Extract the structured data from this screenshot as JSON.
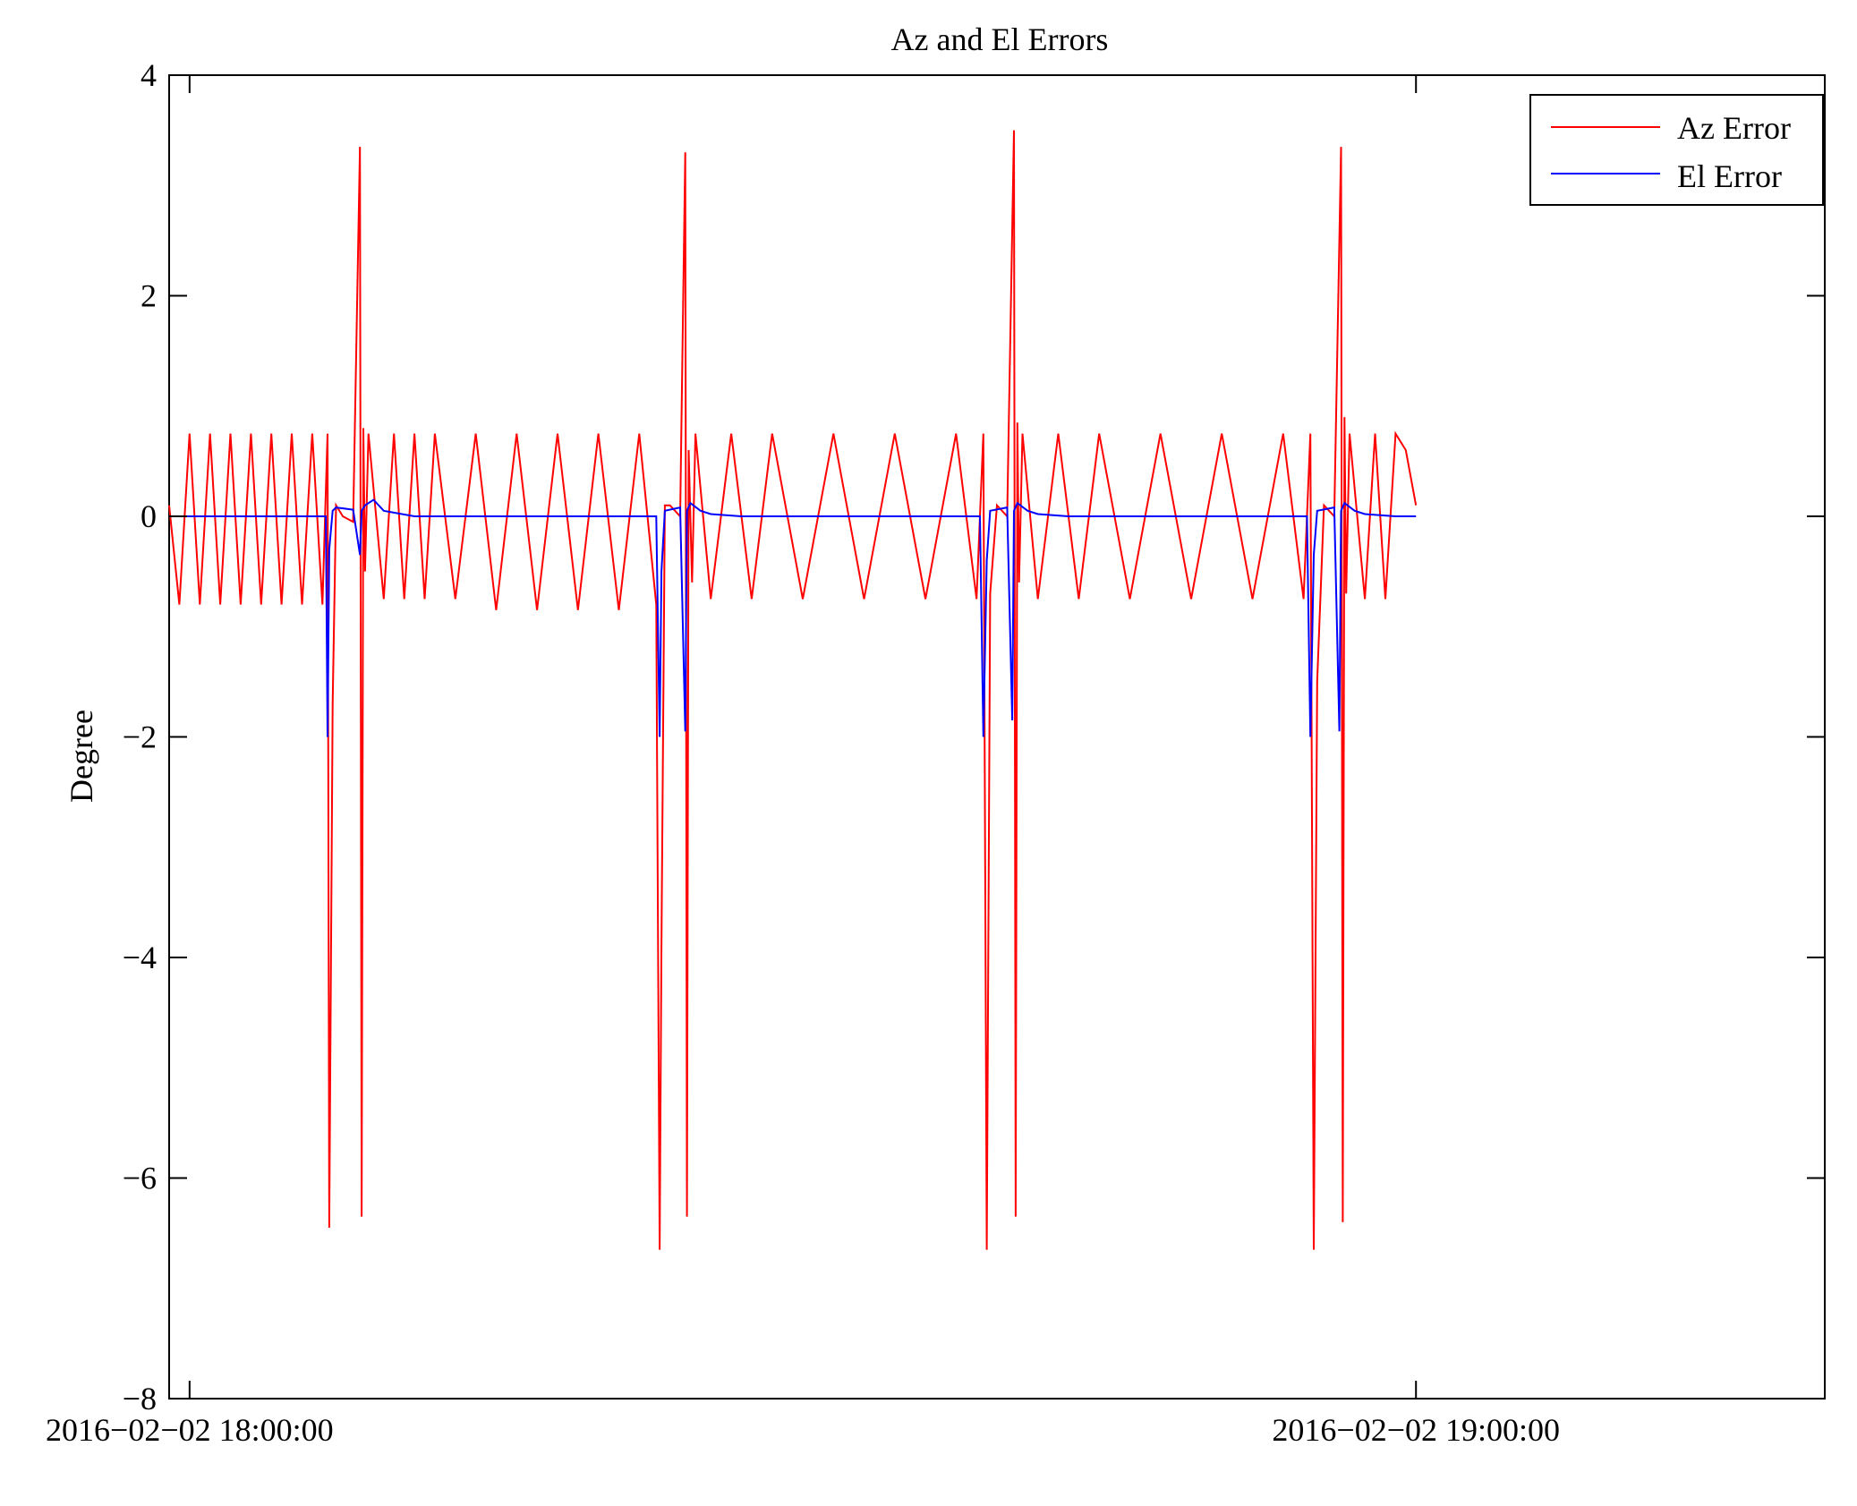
{
  "chart_data": {
    "type": "line",
    "title": "Az and El Errors",
    "xlabel": "",
    "ylabel": "Degree",
    "x_unit": "time",
    "xlim": [
      "2016-02-02 17:59:00",
      "2016-02-02 19:20:00"
    ],
    "ylim": [
      -8,
      4
    ],
    "x_ticks": [
      {
        "value": "2016-02-02 18:00:00",
        "label": "2016−02−02 18:00:00"
      },
      {
        "value": "2016-02-02 19:00:00",
        "label": "2016−02−02 19:00:00"
      }
    ],
    "y_ticks": [
      {
        "value": 4,
        "label": "4"
      },
      {
        "value": 2,
        "label": "2"
      },
      {
        "value": 0,
        "label": "0"
      },
      {
        "value": -2,
        "label": "−2"
      },
      {
        "value": -4,
        "label": "−4"
      },
      {
        "value": -6,
        "label": "−6"
      },
      {
        "value": -8,
        "label": "−8"
      }
    ],
    "grid": false,
    "legend_position": "top-right",
    "series": [
      {
        "name": "Az Error",
        "color": "#ff0000",
        "x": [
          "2016-02-02 17:59:00",
          "2016-02-02 17:59:30",
          "2016-02-02 18:00:00",
          "2016-02-02 18:00:30",
          "2016-02-02 18:01:00",
          "2016-02-02 18:01:30",
          "2016-02-02 18:02:00",
          "2016-02-02 18:02:30",
          "2016-02-02 18:03:00",
          "2016-02-02 18:03:30",
          "2016-02-02 18:04:00",
          "2016-02-02 18:04:30",
          "2016-02-02 18:05:00",
          "2016-02-02 18:05:30",
          "2016-02-02 18:06:00",
          "2016-02-02 18:06:30",
          "2016-02-02 18:06:45",
          "2016-02-02 18:06:50",
          "2016-02-02 18:07:00",
          "2016-02-02 18:07:10",
          "2016-02-02 18:07:30",
          "2016-02-02 18:08:00",
          "2016-02-02 18:08:20",
          "2016-02-02 18:08:25",
          "2016-02-02 18:08:30",
          "2016-02-02 18:08:35",
          "2016-02-02 18:08:45",
          "2016-02-02 18:09:30",
          "2016-02-02 18:10:00",
          "2016-02-02 18:10:30",
          "2016-02-02 18:11:00",
          "2016-02-02 18:11:30",
          "2016-02-02 18:12:00",
          "2016-02-02 18:13:00",
          "2016-02-02 18:14:00",
          "2016-02-02 18:15:00",
          "2016-02-02 18:16:00",
          "2016-02-02 18:17:00",
          "2016-02-02 18:18:00",
          "2016-02-02 18:19:00",
          "2016-02-02 18:20:00",
          "2016-02-02 18:21:00",
          "2016-02-02 18:22:00",
          "2016-02-02 18:22:50",
          "2016-02-02 18:23:00",
          "2016-02-02 18:23:05",
          "2016-02-02 18:23:15",
          "2016-02-02 18:23:30",
          "2016-02-02 18:24:00",
          "2016-02-02 18:24:15",
          "2016-02-02 18:24:20",
          "2016-02-02 18:24:25",
          "2016-02-02 18:24:35",
          "2016-02-02 18:24:45",
          "2016-02-02 18:25:30",
          "2016-02-02 18:26:30",
          "2016-02-02 18:27:30",
          "2016-02-02 18:28:30",
          "2016-02-02 18:30:00",
          "2016-02-02 18:31:30",
          "2016-02-02 18:33:00",
          "2016-02-02 18:34:30",
          "2016-02-02 18:36:00",
          "2016-02-02 18:37:30",
          "2016-02-02 18:38:30",
          "2016-02-02 18:38:50",
          "2016-02-02 18:39:00",
          "2016-02-02 18:39:10",
          "2016-02-02 18:39:30",
          "2016-02-02 18:40:00",
          "2016-02-02 18:40:20",
          "2016-02-02 18:40:25",
          "2016-02-02 18:40:30",
          "2016-02-02 18:40:35",
          "2016-02-02 18:40:45",
          "2016-02-02 18:41:30",
          "2016-02-02 18:42:30",
          "2016-02-02 18:43:30",
          "2016-02-02 18:44:30",
          "2016-02-02 18:46:00",
          "2016-02-02 18:47:30",
          "2016-02-02 18:49:00",
          "2016-02-02 18:50:30",
          "2016-02-02 18:52:00",
          "2016-02-02 18:53:30",
          "2016-02-02 18:54:30",
          "2016-02-02 18:54:50",
          "2016-02-02 18:55:00",
          "2016-02-02 18:55:10",
          "2016-02-02 18:55:30",
          "2016-02-02 18:56:00",
          "2016-02-02 18:56:20",
          "2016-02-02 18:56:25",
          "2016-02-02 18:56:30",
          "2016-02-02 18:56:35",
          "2016-02-02 18:56:45",
          "2016-02-02 18:57:30",
          "2016-02-02 18:58:00",
          "2016-02-02 18:58:30",
          "2016-02-02 18:59:00",
          "2016-02-02 18:59:30",
          "2016-02-02 19:00:00"
        ],
        "y": [
          0.1,
          -0.8,
          0.75,
          -0.8,
          0.75,
          -0.8,
          0.75,
          -0.8,
          0.75,
          -0.8,
          0.75,
          -0.8,
          0.75,
          -0.8,
          0.75,
          -0.8,
          0.75,
          -6.45,
          -1.7,
          0.1,
          0.0,
          -0.05,
          3.35,
          -6.35,
          0.8,
          -0.5,
          0.75,
          -0.75,
          0.75,
          -0.75,
          0.75,
          -0.75,
          0.75,
          -0.75,
          0.75,
          -0.85,
          0.75,
          -0.85,
          0.75,
          -0.85,
          0.75,
          -0.85,
          0.75,
          -0.8,
          -6.65,
          -3.9,
          0.1,
          0.1,
          0.0,
          3.3,
          -6.35,
          0.6,
          -0.6,
          0.75,
          -0.75,
          0.75,
          -0.75,
          0.75,
          -0.75,
          0.75,
          -0.75,
          0.75,
          -0.75,
          0.75,
          -0.75,
          0.75,
          -6.65,
          -0.7,
          0.1,
          0.0,
          3.5,
          -6.35,
          0.85,
          -0.6,
          0.75,
          -0.75,
          0.75,
          -0.75,
          0.75,
          -0.75,
          0.75,
          -0.75,
          0.75,
          -0.75,
          0.75,
          -0.75,
          0.75,
          -6.65,
          -1.5,
          0.1,
          0.0,
          3.35,
          -6.4,
          0.9,
          -0.7,
          0.75,
          -0.75,
          0.75,
          -0.75,
          0.75,
          0.6,
          0.1
        ]
      },
      {
        "name": "El Error",
        "color": "#0000ff",
        "x": [
          "2016-02-02 17:59:00",
          "2016-02-02 18:02:00",
          "2016-02-02 18:06:40",
          "2016-02-02 18:06:45",
          "2016-02-02 18:06:50",
          "2016-02-02 18:07:00",
          "2016-02-02 18:07:10",
          "2016-02-02 18:08:00",
          "2016-02-02 18:08:20",
          "2016-02-02 18:08:25",
          "2016-02-02 18:08:35",
          "2016-02-02 18:09:00",
          "2016-02-02 18:09:30",
          "2016-02-02 18:11:00",
          "2016-02-02 18:22:50",
          "2016-02-02 18:23:00",
          "2016-02-02 18:23:05",
          "2016-02-02 18:23:15",
          "2016-02-02 18:24:00",
          "2016-02-02 18:24:15",
          "2016-02-02 18:24:20",
          "2016-02-02 18:24:30",
          "2016-02-02 18:25:00",
          "2016-02-02 18:25:30",
          "2016-02-02 18:27:00",
          "2016-02-02 18:38:40",
          "2016-02-02 18:38:50",
          "2016-02-02 18:39:00",
          "2016-02-02 18:39:10",
          "2016-02-02 18:40:00",
          "2016-02-02 18:40:15",
          "2016-02-02 18:40:20",
          "2016-02-02 18:40:30",
          "2016-02-02 18:41:00",
          "2016-02-02 18:41:30",
          "2016-02-02 18:43:00",
          "2016-02-02 18:54:40",
          "2016-02-02 18:54:50",
          "2016-02-02 18:55:00",
          "2016-02-02 18:55:10",
          "2016-02-02 18:56:00",
          "2016-02-02 18:56:15",
          "2016-02-02 18:56:20",
          "2016-02-02 18:56:30",
          "2016-02-02 18:57:00",
          "2016-02-02 18:57:30",
          "2016-02-02 18:59:00",
          "2016-02-02 19:00:00"
        ],
        "y": [
          0.0,
          0.0,
          0.0,
          -2.0,
          -0.3,
          0.05,
          0.08,
          0.06,
          -0.35,
          0.05,
          0.1,
          0.15,
          0.05,
          0.0,
          0.0,
          -2.0,
          -0.5,
          0.05,
          0.08,
          -1.95,
          0.05,
          0.12,
          0.05,
          0.02,
          0.0,
          0.0,
          -2.0,
          -0.4,
          0.05,
          0.08,
          -1.85,
          0.05,
          0.12,
          0.05,
          0.02,
          0.0,
          0.0,
          -2.0,
          -0.35,
          0.05,
          0.08,
          -1.95,
          0.05,
          0.12,
          0.05,
          0.02,
          0.0,
          0.0
        ]
      }
    ]
  }
}
